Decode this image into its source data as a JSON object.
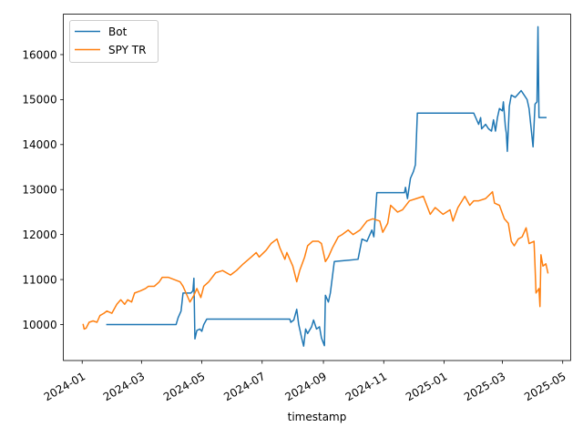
{
  "chart_data": {
    "type": "line",
    "xlabel": "timestamp",
    "ylabel": "",
    "title": "",
    "xlim": [
      "2023-12-13",
      "2025-05-09"
    ],
    "ylim": [
      9200,
      16900
    ],
    "grid": false,
    "legend": "top-left",
    "x_ticks": [
      "2024-01",
      "2024-03",
      "2024-05",
      "2024-07",
      "2024-09",
      "2024-11",
      "2025-01",
      "2025-03",
      "2025-05"
    ],
    "y_ticks": [
      10000,
      11000,
      12000,
      13000,
      14000,
      15000,
      16000
    ],
    "series": [
      {
        "name": "Bot",
        "color": "#1f77b4",
        "points": [
          [
            "2024-01-26",
            10000
          ],
          [
            "2024-04-05",
            10000
          ],
          [
            "2024-04-07",
            10150
          ],
          [
            "2024-04-10",
            10300
          ],
          [
            "2024-04-12",
            10700
          ],
          [
            "2024-04-20",
            10700
          ],
          [
            "2024-04-22",
            10750
          ],
          [
            "2024-04-23",
            11030
          ],
          [
            "2024-04-24",
            9680
          ],
          [
            "2024-04-26",
            9870
          ],
          [
            "2024-04-29",
            9900
          ],
          [
            "2024-05-01",
            9850
          ],
          [
            "2024-05-03",
            10000
          ],
          [
            "2024-05-06",
            10120
          ],
          [
            "2024-07-29",
            10120
          ],
          [
            "2024-07-30",
            10050
          ],
          [
            "2024-08-02",
            10100
          ],
          [
            "2024-08-05",
            10340
          ],
          [
            "2024-08-07",
            10000
          ],
          [
            "2024-08-10",
            9700
          ],
          [
            "2024-08-12",
            9520
          ],
          [
            "2024-08-14",
            9900
          ],
          [
            "2024-08-16",
            9800
          ],
          [
            "2024-08-20",
            9950
          ],
          [
            "2024-08-22",
            10100
          ],
          [
            "2024-08-25",
            9900
          ],
          [
            "2024-08-28",
            9950
          ],
          [
            "2024-08-30",
            9700
          ],
          [
            "2024-09-02",
            9530
          ],
          [
            "2024-09-03",
            10650
          ],
          [
            "2024-09-06",
            10500
          ],
          [
            "2024-09-08",
            10700
          ],
          [
            "2024-09-12",
            11400
          ],
          [
            "2024-10-06",
            11450
          ],
          [
            "2024-10-10",
            11900
          ],
          [
            "2024-10-15",
            11850
          ],
          [
            "2024-10-20",
            12100
          ],
          [
            "2024-10-22",
            11950
          ],
          [
            "2024-10-25",
            12930
          ],
          [
            "2024-11-22",
            12930
          ],
          [
            "2024-11-23",
            13050
          ],
          [
            "2024-11-25",
            12800
          ],
          [
            "2024-11-28",
            13250
          ],
          [
            "2024-12-01",
            13400
          ],
          [
            "2024-12-03",
            13550
          ],
          [
            "2024-12-05",
            14700
          ],
          [
            "2025-01-31",
            14700
          ],
          [
            "2025-02-03",
            14550
          ],
          [
            "2025-02-05",
            14450
          ],
          [
            "2025-02-07",
            14600
          ],
          [
            "2025-02-08",
            14350
          ],
          [
            "2025-02-12",
            14450
          ],
          [
            "2025-02-15",
            14350
          ],
          [
            "2025-02-18",
            14300
          ],
          [
            "2025-02-20",
            14550
          ],
          [
            "2025-02-22",
            14300
          ],
          [
            "2025-02-24",
            14600
          ],
          [
            "2025-02-26",
            14800
          ],
          [
            "2025-03-01",
            14750
          ],
          [
            "2025-03-02",
            14950
          ],
          [
            "2025-03-04",
            14400
          ],
          [
            "2025-03-05",
            14250
          ],
          [
            "2025-03-06",
            13850
          ],
          [
            "2025-03-08",
            14850
          ],
          [
            "2025-03-10",
            15100
          ],
          [
            "2025-03-14",
            15050
          ],
          [
            "2025-03-18",
            15150
          ],
          [
            "2025-03-20",
            15200
          ],
          [
            "2025-03-23",
            15100
          ],
          [
            "2025-03-26",
            15000
          ],
          [
            "2025-03-28",
            14800
          ],
          [
            "2025-04-01",
            13950
          ],
          [
            "2025-04-03",
            14900
          ],
          [
            "2025-04-05",
            14950
          ],
          [
            "2025-04-06",
            16620
          ],
          [
            "2025-04-07",
            14600
          ],
          [
            "2025-04-14",
            14600
          ]
        ]
      },
      {
        "name": "SPY TR",
        "color": "#ff7f0e",
        "points": [
          [
            "2024-01-02",
            10000
          ],
          [
            "2024-01-03",
            9900
          ],
          [
            "2024-01-05",
            9920
          ],
          [
            "2024-01-08",
            10050
          ],
          [
            "2024-01-12",
            10080
          ],
          [
            "2024-01-16",
            10050
          ],
          [
            "2024-01-19",
            10200
          ],
          [
            "2024-01-23",
            10250
          ],
          [
            "2024-01-26",
            10300
          ],
          [
            "2024-01-31",
            10250
          ],
          [
            "2024-02-05",
            10450
          ],
          [
            "2024-02-09",
            10550
          ],
          [
            "2024-02-13",
            10450
          ],
          [
            "2024-02-16",
            10550
          ],
          [
            "2024-02-20",
            10500
          ],
          [
            "2024-02-23",
            10700
          ],
          [
            "2024-02-29",
            10750
          ],
          [
            "2024-03-05",
            10800
          ],
          [
            "2024-03-08",
            10850
          ],
          [
            "2024-03-14",
            10850
          ],
          [
            "2024-03-19",
            10950
          ],
          [
            "2024-03-22",
            11050
          ],
          [
            "2024-03-28",
            11050
          ],
          [
            "2024-04-03",
            11000
          ],
          [
            "2024-04-09",
            10950
          ],
          [
            "2024-04-12",
            10850
          ],
          [
            "2024-04-15",
            10700
          ],
          [
            "2024-04-19",
            10500
          ],
          [
            "2024-04-23",
            10650
          ],
          [
            "2024-04-26",
            10800
          ],
          [
            "2024-04-30",
            10600
          ],
          [
            "2024-05-03",
            10850
          ],
          [
            "2024-05-08",
            10950
          ],
          [
            "2024-05-15",
            11150
          ],
          [
            "2024-05-22",
            11200
          ],
          [
            "2024-05-30",
            11100
          ],
          [
            "2024-06-05",
            11200
          ],
          [
            "2024-06-12",
            11350
          ],
          [
            "2024-06-20",
            11500
          ],
          [
            "2024-06-25",
            11600
          ],
          [
            "2024-06-28",
            11500
          ],
          [
            "2024-07-05",
            11650
          ],
          [
            "2024-07-10",
            11800
          ],
          [
            "2024-07-16",
            11900
          ],
          [
            "2024-07-19",
            11700
          ],
          [
            "2024-07-24",
            11450
          ],
          [
            "2024-07-26",
            11600
          ],
          [
            "2024-08-01",
            11300
          ],
          [
            "2024-08-05",
            10950
          ],
          [
            "2024-08-08",
            11200
          ],
          [
            "2024-08-13",
            11500
          ],
          [
            "2024-08-16",
            11750
          ],
          [
            "2024-08-21",
            11850
          ],
          [
            "2024-08-27",
            11850
          ],
          [
            "2024-08-30",
            11800
          ],
          [
            "2024-09-03",
            11400
          ],
          [
            "2024-09-06",
            11500
          ],
          [
            "2024-09-10",
            11700
          ],
          [
            "2024-09-16",
            11950
          ],
          [
            "2024-09-20",
            12000
          ],
          [
            "2024-09-26",
            12100
          ],
          [
            "2024-10-01",
            12000
          ],
          [
            "2024-10-08",
            12100
          ],
          [
            "2024-10-15",
            12300
          ],
          [
            "2024-10-21",
            12350
          ],
          [
            "2024-10-28",
            12300
          ],
          [
            "2024-10-31",
            12050
          ],
          [
            "2024-11-05",
            12250
          ],
          [
            "2024-11-08",
            12650
          ],
          [
            "2024-11-15",
            12500
          ],
          [
            "2024-11-20",
            12550
          ],
          [
            "2024-11-27",
            12750
          ],
          [
            "2024-12-04",
            12800
          ],
          [
            "2024-12-11",
            12850
          ],
          [
            "2024-12-18",
            12450
          ],
          [
            "2024-12-23",
            12600
          ],
          [
            "2024-12-31",
            12450
          ],
          [
            "2025-01-07",
            12550
          ],
          [
            "2025-01-10",
            12300
          ],
          [
            "2025-01-15",
            12600
          ],
          [
            "2025-01-22",
            12850
          ],
          [
            "2025-01-27",
            12650
          ],
          [
            "2025-01-31",
            12750
          ],
          [
            "2025-02-05",
            12750
          ],
          [
            "2025-02-12",
            12800
          ],
          [
            "2025-02-19",
            12950
          ],
          [
            "2025-02-21",
            12700
          ],
          [
            "2025-02-26",
            12650
          ],
          [
            "2025-03-03",
            12350
          ],
          [
            "2025-03-07",
            12250
          ],
          [
            "2025-03-10",
            11850
          ],
          [
            "2025-03-13",
            11750
          ],
          [
            "2025-03-17",
            11900
          ],
          [
            "2025-03-21",
            11950
          ],
          [
            "2025-03-25",
            12150
          ],
          [
            "2025-03-28",
            11800
          ],
          [
            "2025-04-02",
            11850
          ],
          [
            "2025-04-03",
            11300
          ],
          [
            "2025-04-04",
            10700
          ],
          [
            "2025-04-07",
            10800
          ],
          [
            "2025-04-08",
            10400
          ],
          [
            "2025-04-09",
            11550
          ],
          [
            "2025-04-11",
            11300
          ],
          [
            "2025-04-14",
            11350
          ],
          [
            "2025-04-16",
            11150
          ]
        ]
      }
    ]
  }
}
